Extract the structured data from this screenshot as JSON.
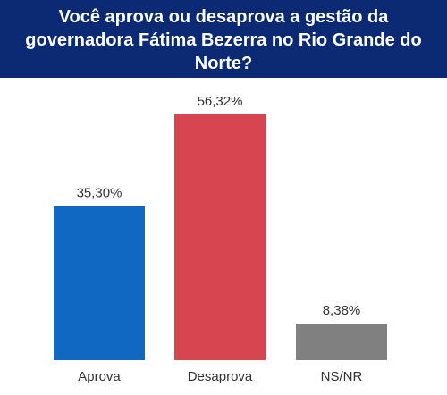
{
  "header": {
    "title": "Você aprova ou desaprova a gestão da governadora Fátima Bezerra no Rio Grande do Norte?"
  },
  "chart_data": {
    "type": "bar",
    "title": "Você aprova ou desaprova a gestão da governadora Fátima Bezerra no Rio Grande do Norte?",
    "categories": [
      "Aprova",
      "Desaprova",
      "NS/NR"
    ],
    "values": [
      35.3,
      56.32,
      8.38
    ],
    "value_labels": [
      "35,30%",
      "56,32%",
      "8,38%"
    ],
    "colors": [
      "#1168c2",
      "#d64550",
      "#808080"
    ],
    "xlabel": "",
    "ylabel": "",
    "ylim": [
      0,
      56.32
    ],
    "grid": false,
    "legend": "none"
  }
}
